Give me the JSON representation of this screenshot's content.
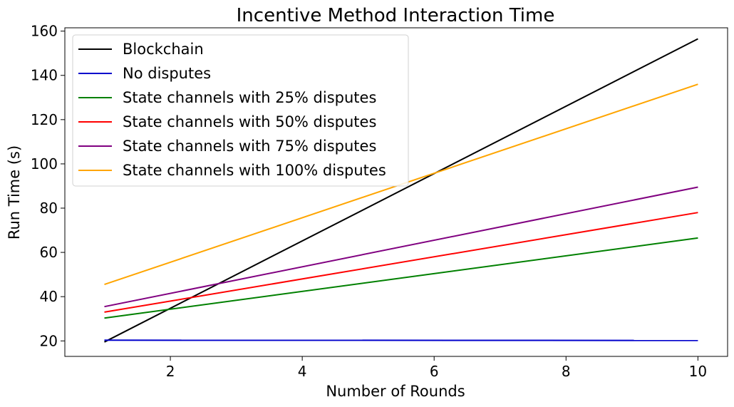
{
  "chart_data": {
    "type": "line",
    "title": "Incentive Method Interaction Time",
    "xlabel": "Number of Rounds",
    "ylabel": "Run Time (s)",
    "xlim": [
      0.4,
      10.45
    ],
    "ylim": [
      13,
      161.5
    ],
    "xticks": [
      2,
      4,
      6,
      8,
      10
    ],
    "yticks": [
      20,
      40,
      60,
      80,
      100,
      120,
      140,
      160
    ],
    "grid": false,
    "legend_position": "top-left",
    "x": [
      1,
      10
    ],
    "series": [
      {
        "name": "Blockchain",
        "color": "#000000",
        "values": [
          19.5,
          156.5
        ]
      },
      {
        "name": "No disputes",
        "color": "#0000cc",
        "values": [
          20.3,
          20.2
        ]
      },
      {
        "name": "State channels with 25% disputes",
        "color": "#008000",
        "values": [
          30.3,
          66.5
        ]
      },
      {
        "name": "State channels with 50% disputes",
        "color": "#ff0000",
        "values": [
          33.0,
          78.0
        ]
      },
      {
        "name": "State channels with 75% disputes",
        "color": "#800080",
        "values": [
          35.5,
          89.5
        ]
      },
      {
        "name": "State channels with 100% disputes",
        "color": "#ffa500",
        "values": [
          45.5,
          136.0
        ]
      }
    ]
  }
}
